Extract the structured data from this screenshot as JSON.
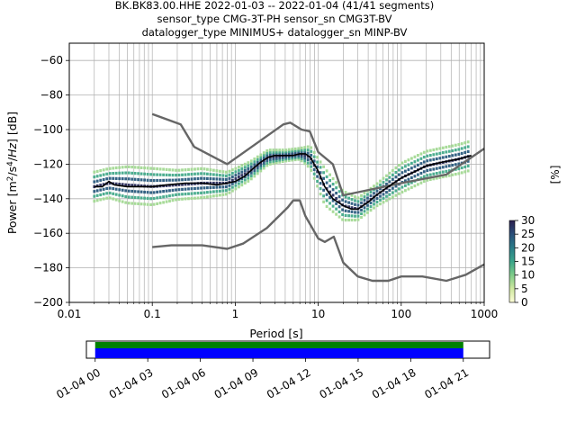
{
  "header": {
    "line1": "BK.BK83.00.HHE   2022-01-03 -- 2022-01-04  (41/41 segments)",
    "line2": "sensor_type CMG-3T-PH sensor_sn CMG3T-BV",
    "line3": "datalogger_type MINIMUS+ datalogger_sn MINP-BV"
  },
  "colors": {
    "noise_model": "#666666",
    "mean_curve": "#000000",
    "coverage_green": "#008000",
    "coverage_blue": "#0000ff",
    "grid": "#b0b0b0"
  },
  "chart_data": [
    {
      "type": "heatmap",
      "title": "",
      "xlabel": "Period [s]",
      "ylabel": "Power [m²/s⁴/Hz] [dB]",
      "xscale": "log",
      "xlim": [
        0.01,
        1000
      ],
      "ylim": [
        -200,
        -50
      ],
      "xticks": [
        {
          "v": 0.01,
          "label": "0.01"
        },
        {
          "v": 0.1,
          "label": "0.1"
        },
        {
          "v": 1,
          "label": "1"
        },
        {
          "v": 10,
          "label": "10"
        },
        {
          "v": 100,
          "label": "100"
        },
        {
          "v": 1000,
          "label": "1000"
        }
      ],
      "yticks": [
        {
          "v": -60,
          "label": "−60"
        },
        {
          "v": -80,
          "label": "−80"
        },
        {
          "v": -100,
          "label": "−100"
        },
        {
          "v": -120,
          "label": "−120"
        },
        {
          "v": -140,
          "label": "−140"
        },
        {
          "v": -160,
          "label": "−160"
        },
        {
          "v": -180,
          "label": "−180"
        },
        {
          "v": -200,
          "label": "−200"
        }
      ],
      "grid": true,
      "colorbar": {
        "label": "[%]",
        "range": [
          0,
          30
        ],
        "ticks": [
          {
            "v": 0,
            "label": "0"
          },
          {
            "v": 5,
            "label": "5"
          },
          {
            "v": 10,
            "label": "10"
          },
          {
            "v": 15,
            "label": "15"
          },
          {
            "v": 20,
            "label": "20"
          },
          {
            "v": 25,
            "label": "25"
          },
          {
            "v": 30,
            "label": "30"
          }
        ],
        "colormap": [
          "#fdfdd7",
          "#cfe8a0",
          "#7fcc8a",
          "#3aa58a",
          "#2a7c88",
          "#2a4f7a",
          "#2b1f4f"
        ]
      },
      "series": [
        {
          "style": "noise-model-high",
          "points": [
            [
              0.1,
              -91
            ],
            [
              0.22,
              -97
            ],
            [
              0.32,
              -110
            ],
            [
              0.8,
              -120
            ],
            [
              3.8,
              -97
            ],
            [
              4.6,
              -96
            ],
            [
              6.3,
              -100
            ],
            [
              7.9,
              -101
            ],
            [
              10,
              -113
            ],
            [
              15,
              -120
            ],
            [
              20,
              -138
            ],
            [
              100,
              -131
            ],
            [
              350,
              -126
            ],
            [
              1000,
              -111
            ]
          ]
        },
        {
          "style": "noise-model-low",
          "points": [
            [
              0.1,
              -168
            ],
            [
              0.17,
              -167
            ],
            [
              0.4,
              -167
            ],
            [
              0.8,
              -169
            ],
            [
              1.24,
              -166
            ],
            [
              2.4,
              -157
            ],
            [
              4.3,
              -145
            ],
            [
              5,
              -141
            ],
            [
              6,
              -141
            ],
            [
              7,
              -150
            ],
            [
              10,
              -163
            ],
            [
              12,
              -165
            ],
            [
              15.4,
              -162
            ],
            [
              20,
              -177
            ],
            [
              30,
              -185
            ],
            [
              45,
              -187.5
            ],
            [
              70,
              -187.5
            ],
            [
              100,
              -185
            ],
            [
              180,
              -185
            ],
            [
              350,
              -187.5
            ],
            [
              600,
              -184
            ],
            [
              1000,
              -178
            ]
          ]
        },
        {
          "style": "mean-curve",
          "points": [
            [
              0.02,
              -133
            ],
            [
              0.025,
              -133
            ],
            [
              0.03,
              -130
            ],
            [
              0.035,
              -132
            ],
            [
              0.05,
              -133
            ],
            [
              0.08,
              -133
            ],
            [
              0.1,
              -133
            ],
            [
              0.15,
              -132
            ],
            [
              0.25,
              -131
            ],
            [
              0.4,
              -131
            ],
            [
              0.6,
              -132
            ],
            [
              0.8,
              -131
            ],
            [
              1.0,
              -130
            ],
            [
              1.3,
              -127
            ],
            [
              1.6,
              -123
            ],
            [
              2.0,
              -119
            ],
            [
              2.5,
              -116
            ],
            [
              3.0,
              -115
            ],
            [
              4.0,
              -115
            ],
            [
              5.0,
              -115
            ],
            [
              6.0,
              -114
            ],
            [
              7.0,
              -114
            ],
            [
              8.0,
              -116
            ],
            [
              10,
              -124
            ],
            [
              12,
              -133
            ],
            [
              15,
              -140
            ],
            [
              20,
              -144
            ],
            [
              25,
              -146
            ],
            [
              30,
              -146
            ],
            [
              40,
              -142
            ],
            [
              50,
              -138
            ],
            [
              70,
              -133
            ],
            [
              100,
              -128
            ],
            [
              150,
              -124
            ],
            [
              200,
              -121
            ],
            [
              300,
              -119
            ],
            [
              500,
              -117
            ],
            [
              700,
              -115
            ]
          ]
        }
      ],
      "density_band": {
        "points": [
          [
            0.02,
            -133,
            4
          ],
          [
            0.03,
            -131,
            4
          ],
          [
            0.05,
            -132,
            5
          ],
          [
            0.1,
            -133,
            5
          ],
          [
            0.2,
            -132,
            4
          ],
          [
            0.4,
            -131,
            4
          ],
          [
            0.8,
            -131,
            3
          ],
          [
            1.5,
            -124,
            2.5
          ],
          [
            2.5,
            -116,
            2
          ],
          [
            4,
            -115,
            1.5
          ],
          [
            6,
            -114,
            1.5
          ],
          [
            8,
            -116,
            3
          ],
          [
            12,
            -133,
            5
          ],
          [
            20,
            -144,
            4
          ],
          [
            30,
            -146,
            3
          ],
          [
            50,
            -138,
            3
          ],
          [
            100,
            -128,
            4
          ],
          [
            200,
            -121,
            4
          ],
          [
            500,
            -117,
            4
          ],
          [
            700,
            -115,
            4
          ]
        ]
      }
    },
    {
      "type": "bar",
      "name": "data-coverage",
      "xscale": "time",
      "xlim": [
        "01-03 23:30",
        "01-04 22:30"
      ],
      "xticks": [
        {
          "v": "01-04 00",
          "label": "01-04 00"
        },
        {
          "v": "01-04 03",
          "label": "01-04 03"
        },
        {
          "v": "01-04 06",
          "label": "01-04 06"
        },
        {
          "v": "01-04 09",
          "label": "01-04 09"
        },
        {
          "v": "01-04 12",
          "label": "01-04 12"
        },
        {
          "v": "01-04 15",
          "label": "01-04 15"
        },
        {
          "v": "01-04 18",
          "label": "01-04 18"
        },
        {
          "v": "01-04 21",
          "label": "01-04 21"
        }
      ],
      "bars": [
        {
          "color": "green",
          "start": "01-04 00",
          "end": "01-04 21"
        },
        {
          "color": "blue",
          "start": "01-04 00",
          "end": "01-04 21"
        }
      ]
    }
  ]
}
